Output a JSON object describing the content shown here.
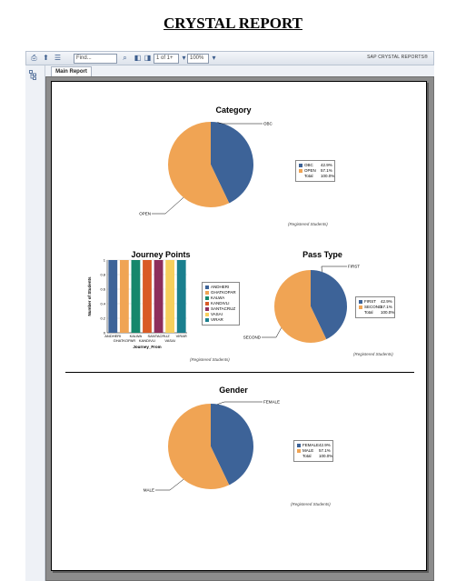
{
  "page": {
    "title": "CRYSTAL REPORT"
  },
  "toolbar": {
    "find_placeholder": "Find...",
    "page_indicator": "1 of 1+",
    "zoom": "100%",
    "brand": "SAP CRYSTAL REPORTS®"
  },
  "tabs": {
    "main": "Main Report"
  },
  "colors": {
    "blue": "#3d6398",
    "orange": "#f0a454",
    "accent_bar": "#c0c0c0"
  },
  "captions": {
    "category": "(Registered Students)",
    "journey": "(Registered Students)",
    "pass": "(Registered Students)",
    "gender": "(Registered Students)"
  },
  "chart_data": [
    {
      "id": "category",
      "type": "pie",
      "title": "Category",
      "slices": [
        {
          "label": "OBC",
          "pct": "42.9%",
          "value": 42.9,
          "color": "#3d6398"
        },
        {
          "label": "OPEN",
          "pct": "57.1%",
          "value": 57.1,
          "color": "#f0a454"
        }
      ],
      "total_label": "Total",
      "total_pct": "100.0%",
      "legend": "right"
    },
    {
      "id": "journey",
      "type": "bar",
      "title": "Journey Points",
      "xlabel": "Journey_From",
      "ylabel": "Number of Students",
      "ylim": [
        0,
        1
      ],
      "yticks": [
        "1",
        "0.8",
        "0.6",
        "0.4",
        "0.2",
        "0"
      ],
      "categories": [
        "ANDHERI",
        "GHATKOPAR",
        "KALWA",
        "KANDIVLI",
        "SANTACRUZ",
        "VASAI",
        "VIRAR"
      ],
      "x_tick_labels_top": [
        "ANDHERI",
        "KALWA",
        "SANTACRUZ",
        "VIRAR"
      ],
      "x_tick_labels_bottom": [
        "GHATKOPAR",
        "KANDIVLI",
        "VASAI"
      ],
      "values": [
        1,
        1,
        1,
        1,
        1,
        1,
        1
      ],
      "bar_colors": [
        "#3d6398",
        "#f0a454",
        "#15876c",
        "#d95b26",
        "#8e2e5c",
        "#f7cf5d",
        "#1a7f8e"
      ],
      "legend_labels": [
        "ANDHERI",
        "GHATKOPAR",
        "KALWA",
        "KANDIVLI",
        "SANTACRUZ",
        "VASAI",
        "VIRAR"
      ],
      "legend": "right"
    },
    {
      "id": "pass",
      "type": "pie",
      "title": "Pass Type",
      "slices": [
        {
          "label": "FIRST",
          "pct": "42.9%",
          "value": 42.9,
          "color": "#3d6398"
        },
        {
          "label": "SECOND",
          "pct": "57.1%",
          "value": 57.1,
          "color": "#f0a454"
        }
      ],
      "total_label": "Total",
      "total_pct": "100.0%",
      "legend": "right"
    },
    {
      "id": "gender",
      "type": "pie",
      "title": "Gender",
      "slices": [
        {
          "label": "FEMALE",
          "pct": "42.9%",
          "value": 42.9,
          "color": "#3d6398"
        },
        {
          "label": "MALE",
          "pct": "57.1%",
          "value": 57.1,
          "color": "#f0a454"
        }
      ],
      "total_label": "Total",
      "total_pct": "100.0%",
      "legend": "right"
    }
  ]
}
